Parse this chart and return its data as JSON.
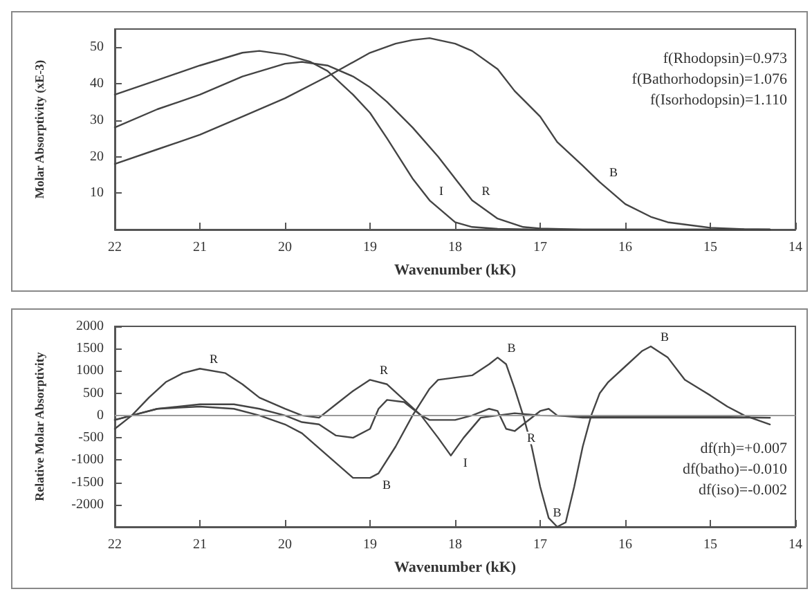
{
  "chart_data": [
    {
      "type": "line",
      "xlabel": "Wavenumber (kK)",
      "ylabel": "Molar Absorptivity (xE-3)",
      "xlim": [
        22,
        14
      ],
      "xticks": [
        22,
        21,
        20,
        19,
        18,
        17,
        16,
        15,
        14
      ],
      "ylim": [
        0,
        55
      ],
      "yticks": [
        10,
        20,
        30,
        40,
        50
      ],
      "marker": "none",
      "line_style": "solid",
      "series": [
        {
          "color": "#444444",
          "x": [
            22,
            21.5,
            21,
            20.5,
            20.3,
            20,
            19.7,
            19.5,
            19.2,
            19,
            18.8,
            18.5,
            18.3,
            18,
            17.8,
            17.5,
            17,
            16,
            15,
            14.3
          ],
          "values": [
            37,
            41,
            45,
            48.5,
            49,
            48,
            46,
            43.5,
            37,
            32,
            25,
            14,
            8,
            2,
            0.7,
            0.2,
            0,
            0,
            0,
            0
          ]
        },
        {
          "color": "#444444",
          "x": [
            22,
            21.5,
            21,
            20.5,
            20,
            19.8,
            19.5,
            19.2,
            19,
            18.8,
            18.5,
            18.2,
            18,
            17.8,
            17.5,
            17.2,
            17,
            16.5,
            15,
            14.3
          ],
          "values": [
            28,
            33,
            37,
            42,
            45.5,
            46,
            45,
            42,
            39,
            35,
            28,
            20,
            14,
            8,
            3,
            0.7,
            0.3,
            0,
            0,
            0
          ]
        },
        {
          "color": "#444444",
          "x": [
            22,
            21.5,
            21,
            20.5,
            20,
            19.5,
            19,
            18.7,
            18.5,
            18.3,
            18,
            17.8,
            17.5,
            17.3,
            17,
            16.8,
            16.5,
            16.3,
            16,
            15.7,
            15.5,
            15,
            14.6,
            14.3
          ],
          "values": [
            18,
            22,
            26,
            31,
            36,
            42,
            48.5,
            51,
            52,
            52.5,
            51,
            49,
            44,
            38,
            31,
            24,
            17.5,
            13,
            7,
            3.5,
            2,
            0.5,
            0.1,
            0
          ]
        }
      ],
      "annotations": [
        {
          "text": "I",
          "x": 18.3,
          "y": 8
        },
        {
          "text": "R",
          "x": 17.8,
          "y": 8
        },
        {
          "text": "B",
          "x": 16.3,
          "y": 13
        },
        "f(Rhodopsin)=0.973",
        "f(Bathorhodopsin)=1.076",
        "f(Isorhodopsin)=1.110"
      ]
    },
    {
      "type": "line",
      "xlabel": "Wavenumber (kK)",
      "ylabel": "Relative Molar Absorptivity",
      "xlim": [
        22,
        14
      ],
      "xticks": [
        22,
        21,
        20,
        19,
        18,
        17,
        16,
        15,
        14
      ],
      "ylim": [
        -2500,
        2000
      ],
      "yticks": [
        -2000,
        -1500,
        -1000,
        -500,
        0,
        500,
        1000,
        1500,
        2000
      ],
      "marker": "none",
      "line_style": "solid",
      "ref_lines": [
        {
          "axis": "y",
          "value": 0,
          "color": "#999999"
        }
      ],
      "series": [
        {
          "color": "#444444",
          "x": [
            22,
            21.8,
            21.6,
            21.4,
            21.2,
            21,
            20.7,
            20.5,
            20.3,
            20,
            19.8,
            19.6,
            19.4,
            19.2,
            19,
            18.8,
            18.6,
            18.4,
            18.3,
            18,
            17.8,
            17.6,
            17.5,
            17.4,
            17.3,
            17.2,
            17,
            16.9,
            16.8,
            16.5,
            16,
            15,
            14.3
          ],
          "values": [
            -300,
            0,
            400,
            750,
            950,
            1050,
            950,
            700,
            400,
            150,
            0,
            -50,
            250,
            550,
            800,
            700,
            350,
            0,
            -100,
            -100,
            0,
            150,
            100,
            -300,
            -350,
            -200,
            100,
            150,
            0,
            -50,
            -50,
            -50,
            -50
          ]
        },
        {
          "color": "#444444",
          "x": [
            22,
            21.7,
            21.5,
            21,
            20.6,
            20.3,
            20,
            19.8,
            19.6,
            19.4,
            19.2,
            19,
            18.9,
            18.8,
            18.6,
            18.4,
            18.2,
            18.05,
            17.9,
            17.7,
            17.5,
            17.3,
            17,
            16,
            15,
            14.3
          ],
          "values": [
            -100,
            50,
            150,
            250,
            250,
            150,
            0,
            -150,
            -200,
            -450,
            -500,
            -300,
            150,
            350,
            300,
            0,
            -500,
            -900,
            -500,
            -50,
            0,
            50,
            0,
            -30,
            -30,
            -50
          ]
        },
        {
          "color": "#444444",
          "x": [
            22,
            21.5,
            21,
            20.6,
            20.3,
            20,
            19.8,
            19.5,
            19.2,
            19,
            18.9,
            18.7,
            18.5,
            18.3,
            18.2,
            18,
            17.8,
            17.6,
            17.5,
            17.4,
            17.3,
            17.2,
            17.1,
            17,
            16.9,
            16.8,
            16.7,
            16.6,
            16.5,
            16.4,
            16.3,
            16.2,
            16,
            15.8,
            15.7,
            15.5,
            15.3,
            15,
            14.8,
            14.6,
            14.3
          ],
          "values": [
            -100,
            150,
            200,
            150,
            0,
            -200,
            -400,
            -900,
            -1400,
            -1400,
            -1300,
            -700,
            0,
            600,
            800,
            850,
            900,
            1150,
            1300,
            1150,
            600,
            0,
            -700,
            -1600,
            -2300,
            -2500,
            -2400,
            -1600,
            -700,
            0,
            500,
            750,
            1100,
            1450,
            1550,
            1300,
            800,
            450,
            200,
            0,
            -200
          ]
        }
      ],
      "annotations": [
        {
          "text": "R",
          "x": 21,
          "y": 1050
        },
        {
          "text": "R",
          "x": 19,
          "y": 800
        },
        {
          "text": "B",
          "x": 17.5,
          "y": 1300
        },
        {
          "text": "B",
          "x": 15.7,
          "y": 1550
        },
        {
          "text": "I",
          "x": 18.05,
          "y": -900
        },
        {
          "text": "R",
          "x": 17.3,
          "y": -350
        },
        {
          "text": "B",
          "x": 19,
          "y": -1400
        },
        {
          "text": "B",
          "x": 16.8,
          "y": -2500
        },
        "df(rh)=+0.007",
        "df(batho)=-0.010",
        "df(iso)=-0.002"
      ]
    }
  ]
}
